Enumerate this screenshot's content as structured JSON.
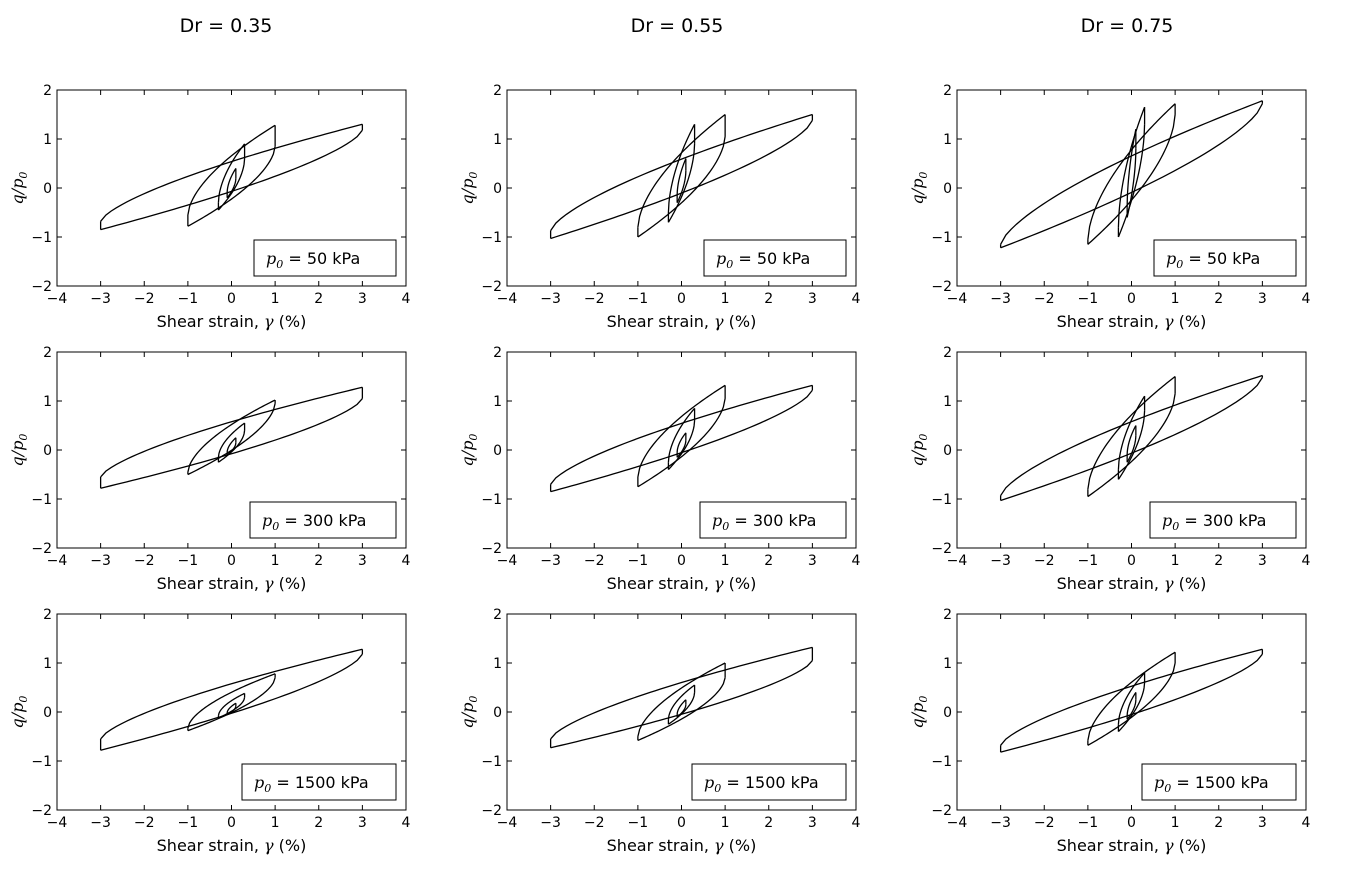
{
  "figure": {
    "column_titles": [
      "Dr = 0.35",
      "Dr = 0.55",
      "Dr = 0.75"
    ],
    "xlabel_text": "Shear strain, ",
    "xlabel_symbol": "γ",
    "xlabel_unit": " (%)",
    "ylabel_q": "q",
    "ylabel_slash": "/",
    "ylabel_p": "p",
    "ylabel_sub": "0",
    "legend_symbol": "p",
    "legend_sub": "0",
    "legend_values": [
      " =   50 kPa",
      " =  300 kPa",
      " = 1500 kPa"
    ],
    "line_color": "#000000",
    "xticks": [
      "−4",
      "−2",
      "−1",
      "0",
      "1",
      "2",
      "3",
      "4",
      "−3"
    ],
    "yticks": [
      "−2",
      "−1",
      "0",
      "1",
      "2"
    ]
  },
  "chart_data": [
    {
      "type": "line",
      "dr": "Dr = 0.35",
      "legend": "p0 =   50 kPa",
      "xlim": [
        -4,
        4
      ],
      "ylim": [
        -2,
        2
      ],
      "xticks": [
        -4,
        -3,
        -2,
        -1,
        0,
        1,
        2,
        3,
        4
      ],
      "yticks": [
        -2,
        -1,
        0,
        1,
        2
      ],
      "loops": [
        {
          "amplitude": 3,
          "top": 1.3,
          "bottom": -0.85,
          "top_low": 1.18,
          "bottom_high": -0.68
        },
        {
          "amplitude": 1,
          "top": 1.28,
          "bottom": -0.78,
          "top_low": 0.85,
          "bottom_high": -0.55
        },
        {
          "amplitude": 0.3,
          "top": 0.9,
          "bottom": -0.45,
          "top_low": 0.6,
          "bottom_high": -0.3
        },
        {
          "amplitude": 0.1,
          "top": 0.4,
          "bottom": -0.2,
          "top_low": 0.2,
          "bottom_high": -0.1
        }
      ]
    },
    {
      "type": "line",
      "dr": "Dr = 0.55",
      "legend": "p0 =   50 kPa",
      "xlim": [
        -4,
        4
      ],
      "ylim": [
        -2,
        2
      ],
      "xticks": [
        -4,
        -3,
        -2,
        -1,
        0,
        1,
        2,
        3,
        4
      ],
      "yticks": [
        -2,
        -1,
        0,
        1,
        2
      ],
      "loops": [
        {
          "amplitude": 3,
          "top": 1.5,
          "bottom": -1.03,
          "top_low": 1.38,
          "bottom_high": -0.87
        },
        {
          "amplitude": 1,
          "top": 1.5,
          "bottom": -1.0,
          "top_low": 1.05,
          "bottom_high": -0.8
        },
        {
          "amplitude": 0.3,
          "top": 1.3,
          "bottom": -0.7,
          "top_low": 0.9,
          "bottom_high": -0.5
        },
        {
          "amplitude": 0.1,
          "top": 0.6,
          "bottom": -0.3,
          "top_low": 0.35,
          "bottom_high": -0.15
        }
      ]
    },
    {
      "type": "line",
      "dr": "Dr = 0.75",
      "legend": "p0 =   50 kPa",
      "xlim": [
        -4,
        4
      ],
      "ylim": [
        -2,
        2
      ],
      "xticks": [
        -4,
        -3,
        -2,
        -1,
        0,
        1,
        2,
        3,
        4
      ],
      "yticks": [
        -2,
        -1,
        0,
        1,
        2
      ],
      "loops": [
        {
          "amplitude": 3,
          "top": 1.78,
          "bottom": -1.22,
          "top_low": 1.72,
          "bottom_high": -1.15
        },
        {
          "amplitude": 1,
          "top": 1.72,
          "bottom": -1.15,
          "top_low": 1.5,
          "bottom_high": -1.05
        },
        {
          "amplitude": 0.3,
          "top": 1.65,
          "bottom": -1.0,
          "top_low": 1.3,
          "bottom_high": -0.8
        },
        {
          "amplitude": 0.1,
          "top": 1.2,
          "bottom": -0.6,
          "top_low": 0.8,
          "bottom_high": -0.4
        }
      ]
    },
    {
      "type": "line",
      "dr": "Dr = 0.35",
      "legend": "p0 =  300 kPa",
      "xlim": [
        -4,
        4
      ],
      "ylim": [
        -2,
        2
      ],
      "xticks": [
        -4,
        -3,
        -2,
        -1,
        0,
        1,
        2,
        3,
        4
      ],
      "yticks": [
        -2,
        -1,
        0,
        1,
        2
      ],
      "loops": [
        {
          "amplitude": 3,
          "top": 1.28,
          "bottom": -0.78,
          "top_low": 1.05,
          "bottom_high": -0.55
        },
        {
          "amplitude": 1,
          "top": 1.02,
          "bottom": -0.5,
          "top_low": 0.95,
          "bottom_high": -0.45
        },
        {
          "amplitude": 0.3,
          "top": 0.55,
          "bottom": -0.25,
          "top_low": 0.4,
          "bottom_high": -0.15
        },
        {
          "amplitude": 0.1,
          "top": 0.25,
          "bottom": -0.1,
          "top_low": 0.15,
          "bottom_high": -0.05
        }
      ]
    },
    {
      "type": "line",
      "dr": "Dr = 0.55",
      "legend": "p0 =  300 kPa",
      "xlim": [
        -4,
        4
      ],
      "ylim": [
        -2,
        2
      ],
      "xticks": [
        -4,
        -3,
        -2,
        -1,
        0,
        1,
        2,
        3,
        4
      ],
      "yticks": [
        -2,
        -1,
        0,
        1,
        2
      ],
      "loops": [
        {
          "amplitude": 3,
          "top": 1.32,
          "bottom": -0.85,
          "top_low": 1.22,
          "bottom_high": -0.7
        },
        {
          "amplitude": 1,
          "top": 1.32,
          "bottom": -0.75,
          "top_low": 1.05,
          "bottom_high": -0.55
        },
        {
          "amplitude": 0.3,
          "top": 0.85,
          "bottom": -0.4,
          "top_low": 0.6,
          "bottom_high": -0.25
        },
        {
          "amplitude": 0.1,
          "top": 0.35,
          "bottom": -0.15,
          "top_low": 0.2,
          "bottom_high": -0.05
        }
      ]
    },
    {
      "type": "line",
      "dr": "Dr = 0.75",
      "legend": "p0 =  300 kPa",
      "xlim": [
        -4,
        4
      ],
      "ylim": [
        -2,
        2
      ],
      "xticks": [
        -4,
        -3,
        -2,
        -1,
        0,
        1,
        2,
        3,
        4
      ],
      "yticks": [
        -2,
        -1,
        0,
        1,
        2
      ],
      "loops": [
        {
          "amplitude": 3,
          "top": 1.52,
          "bottom": -1.03,
          "top_low": 1.48,
          "bottom_high": -0.93
        },
        {
          "amplitude": 1,
          "top": 1.5,
          "bottom": -0.95,
          "top_low": 1.15,
          "bottom_high": -0.8
        },
        {
          "amplitude": 0.3,
          "top": 1.1,
          "bottom": -0.6,
          "top_low": 0.8,
          "bottom_high": -0.4
        },
        {
          "amplitude": 0.1,
          "top": 0.5,
          "bottom": -0.25,
          "top_low": 0.3,
          "bottom_high": -0.1
        }
      ]
    },
    {
      "type": "line",
      "dr": "Dr = 0.35",
      "legend": "p0 = 1500 kPa",
      "xlim": [
        -4,
        4
      ],
      "ylim": [
        -2,
        2
      ],
      "xticks": [
        -4,
        -3,
        -2,
        -1,
        0,
        1,
        2,
        3,
        4
      ],
      "yticks": [
        -2,
        -1,
        0,
        1,
        2
      ],
      "loops": [
        {
          "amplitude": 3,
          "top": 1.28,
          "bottom": -0.78,
          "top_low": 1.18,
          "bottom_high": -0.55
        },
        {
          "amplitude": 1,
          "top": 0.78,
          "bottom": -0.38,
          "top_low": 0.7,
          "bottom_high": -0.33
        },
        {
          "amplitude": 0.3,
          "top": 0.38,
          "bottom": -0.12,
          "top_low": 0.3,
          "bottom_high": -0.08
        },
        {
          "amplitude": 0.1,
          "top": 0.18,
          "bottom": -0.05,
          "top_low": 0.12,
          "bottom_high": -0.02
        }
      ]
    },
    {
      "type": "line",
      "dr": "Dr = 0.55",
      "legend": "p0 = 1500 kPa",
      "xlim": [
        -4,
        4
      ],
      "ylim": [
        -2,
        2
      ],
      "xticks": [
        -4,
        -3,
        -2,
        -1,
        0,
        1,
        2,
        3,
        4
      ],
      "yticks": [
        -2,
        -1,
        0,
        1,
        2
      ],
      "loops": [
        {
          "amplitude": 3,
          "top": 1.32,
          "bottom": -0.73,
          "top_low": 1.05,
          "bottom_high": -0.55
        },
        {
          "amplitude": 1,
          "top": 1.0,
          "bottom": -0.58,
          "top_low": 0.7,
          "bottom_high": -0.5
        },
        {
          "amplitude": 0.3,
          "top": 0.55,
          "bottom": -0.25,
          "top_low": 0.4,
          "bottom_high": -0.15
        },
        {
          "amplitude": 0.1,
          "top": 0.25,
          "bottom": -0.1,
          "top_low": 0.15,
          "bottom_high": -0.05
        }
      ]
    },
    {
      "type": "line",
      "dr": "Dr = 0.75",
      "legend": "p0 = 1500 kPa",
      "xlim": [
        -4,
        4
      ],
      "ylim": [
        -2,
        2
      ],
      "xticks": [
        -4,
        -3,
        -2,
        -1,
        0,
        1,
        2,
        3,
        4
      ],
      "yticks": [
        -2,
        -1,
        0,
        1,
        2
      ],
      "loops": [
        {
          "amplitude": 3,
          "top": 1.28,
          "bottom": -0.82,
          "top_low": 1.18,
          "bottom_high": -0.68
        },
        {
          "amplitude": 1,
          "top": 1.22,
          "bottom": -0.68,
          "top_low": 1.0,
          "bottom_high": -0.58
        },
        {
          "amplitude": 0.3,
          "top": 0.8,
          "bottom": -0.4,
          "top_low": 0.6,
          "bottom_high": -0.25
        },
        {
          "amplitude": 0.1,
          "top": 0.4,
          "bottom": -0.15,
          "top_low": 0.25,
          "bottom_high": -0.08
        }
      ]
    }
  ]
}
